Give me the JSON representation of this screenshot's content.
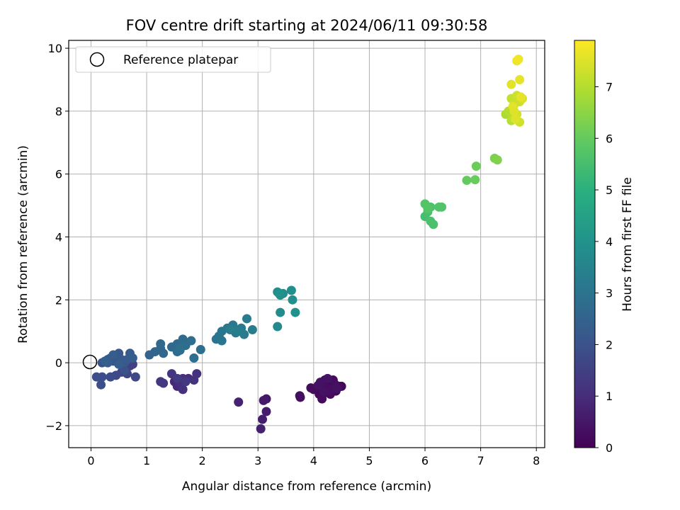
{
  "chart_data": {
    "type": "scatter",
    "title": "FOV centre drift starting at 2024/06/11 09:30:58",
    "xlabel": "Angular distance from reference (arcmin)",
    "ylabel": "Rotation from reference (arcmin)",
    "xlim": [
      -0.4,
      8.15
    ],
    "ylim": [
      -2.7,
      10.25
    ],
    "xticks": [
      0,
      1,
      2,
      3,
      4,
      5,
      6,
      7,
      8
    ],
    "yticks": [
      -2,
      0,
      2,
      4,
      6,
      8,
      10
    ],
    "grid": true,
    "legend": {
      "position": "top-left",
      "entries": [
        "Reference platepar"
      ]
    },
    "reference_point": {
      "x": 0,
      "y": 0
    },
    "colorbar": {
      "label": "Hours from first FF file",
      "colormap": "viridis",
      "range": [
        0,
        7.9
      ],
      "ticks": [
        0,
        1,
        2,
        3,
        4,
        5,
        6,
        7
      ]
    },
    "points": [
      [
        4.05,
        -0.85,
        0.05
      ],
      [
        4.15,
        -0.7,
        0.05
      ],
      [
        4.25,
        -0.95,
        0.08
      ],
      [
        4.3,
        -0.6,
        0.1
      ],
      [
        4.35,
        -0.8,
        0.1
      ],
      [
        4.2,
        -0.55,
        0.12
      ],
      [
        4.4,
        -0.9,
        0.12
      ],
      [
        4.1,
        -1.0,
        0.15
      ],
      [
        4.45,
        -0.75,
        0.15
      ],
      [
        4.5,
        -0.75,
        0.18
      ],
      [
        4.0,
        -0.85,
        0.2
      ],
      [
        4.3,
        -1.0,
        0.2
      ],
      [
        4.15,
        -1.15,
        0.22
      ],
      [
        4.35,
        -0.55,
        0.25
      ],
      [
        3.95,
        -0.8,
        0.25
      ],
      [
        4.22,
        -0.78,
        0.28
      ],
      [
        4.38,
        -0.68,
        0.3
      ],
      [
        4.28,
        -0.88,
        0.3
      ],
      [
        3.75,
        -1.05,
        0.3
      ],
      [
        3.76,
        -1.1,
        0.32
      ],
      [
        4.12,
        -0.62,
        0.35
      ],
      [
        4.18,
        -0.92,
        0.35
      ],
      [
        4.42,
        -0.82,
        0.38
      ],
      [
        4.08,
        -0.72,
        0.38
      ],
      [
        4.25,
        -0.5,
        0.4
      ],
      [
        3.15,
        -1.15,
        0.5
      ],
      [
        3.1,
        -1.2,
        0.55
      ],
      [
        3.15,
        -1.55,
        0.6
      ],
      [
        3.08,
        -1.8,
        0.65
      ],
      [
        3.05,
        -2.1,
        0.7
      ],
      [
        2.65,
        -1.25,
        0.75
      ],
      [
        1.5,
        -0.6,
        0.9
      ],
      [
        1.55,
        -0.75,
        0.95
      ],
      [
        1.65,
        -0.5,
        1.0
      ],
      [
        1.75,
        -0.5,
        1.0
      ],
      [
        1.6,
        -0.65,
        1.05
      ],
      [
        1.65,
        -0.85,
        1.1
      ],
      [
        1.9,
        -0.35,
        1.1
      ],
      [
        1.85,
        -0.55,
        1.15
      ],
      [
        1.45,
        -0.35,
        1.2
      ],
      [
        1.25,
        -0.6,
        1.25
      ],
      [
        1.3,
        -0.65,
        1.3
      ],
      [
        1.7,
        -0.6,
        1.3
      ],
      [
        1.55,
        -0.5,
        1.35
      ],
      [
        0.7,
        -0.1,
        1.5
      ],
      [
        0.75,
        -0.05,
        1.55
      ],
      [
        0.55,
        -0.3,
        1.6
      ],
      [
        0.65,
        -0.35,
        1.65
      ],
      [
        0.8,
        -0.45,
        1.7
      ],
      [
        0.45,
        -0.4,
        1.75
      ],
      [
        0.35,
        -0.45,
        1.8
      ],
      [
        0.2,
        -0.45,
        1.85
      ],
      [
        0.1,
        -0.45,
        1.9
      ],
      [
        0.18,
        -0.7,
        1.9
      ],
      [
        0.6,
        -0.25,
        1.95
      ],
      [
        0.2,
        0.0,
        2.0
      ],
      [
        0.3,
        0.1,
        2.05
      ],
      [
        0.4,
        0.05,
        2.1
      ],
      [
        0.45,
        0.2,
        2.1
      ],
      [
        0.5,
        0.3,
        2.15
      ],
      [
        0.35,
        0.15,
        2.15
      ],
      [
        0.55,
        0.1,
        2.2
      ],
      [
        0.6,
        0.0,
        2.2
      ],
      [
        0.65,
        0.1,
        2.25
      ],
      [
        0.7,
        0.3,
        2.25
      ],
      [
        0.75,
        0.15,
        2.3
      ],
      [
        0.3,
        0.0,
        2.3
      ],
      [
        0.4,
        0.25,
        2.35
      ],
      [
        0.5,
        -0.05,
        2.35
      ],
      [
        0.25,
        0.05,
        2.4
      ],
      [
        1.05,
        0.25,
        2.5
      ],
      [
        1.15,
        0.35,
        2.55
      ],
      [
        1.25,
        0.45,
        2.6
      ],
      [
        1.3,
        0.3,
        2.6
      ],
      [
        1.25,
        0.6,
        2.65
      ],
      [
        1.45,
        0.5,
        2.7
      ],
      [
        1.55,
        0.6,
        2.7
      ],
      [
        1.6,
        0.4,
        2.75
      ],
      [
        1.65,
        0.75,
        2.75
      ],
      [
        1.55,
        0.35,
        2.8
      ],
      [
        1.7,
        0.55,
        2.8
      ],
      [
        1.8,
        0.7,
        2.85
      ],
      [
        1.85,
        0.15,
        2.85
      ],
      [
        1.97,
        0.42,
        2.9
      ],
      [
        1.6,
        0.45,
        2.9
      ],
      [
        2.25,
        0.75,
        3.0
      ],
      [
        2.3,
        0.85,
        3.05
      ],
      [
        2.35,
        0.7,
        3.05
      ],
      [
        2.35,
        1.0,
        3.1
      ],
      [
        2.45,
        1.1,
        3.1
      ],
      [
        2.55,
        1.2,
        3.15
      ],
      [
        2.6,
        0.95,
        3.2
      ],
      [
        2.7,
        1.1,
        3.2
      ],
      [
        2.75,
        0.9,
        3.25
      ],
      [
        2.8,
        1.4,
        3.25
      ],
      [
        2.9,
        1.05,
        3.3
      ],
      [
        2.65,
        1.0,
        3.3
      ],
      [
        2.5,
        1.05,
        3.35
      ],
      [
        3.35,
        1.15,
        3.7
      ],
      [
        3.4,
        1.6,
        3.75
      ],
      [
        3.35,
        2.25,
        3.8
      ],
      [
        3.4,
        2.15,
        3.85
      ],
      [
        3.45,
        2.2,
        3.85
      ],
      [
        3.6,
        2.3,
        3.9
      ],
      [
        3.62,
        2.0,
        3.9
      ],
      [
        3.67,
        1.6,
        3.95
      ],
      [
        3.38,
        2.2,
        3.95
      ],
      [
        6.0,
        4.65,
        5.5
      ],
      [
        6.05,
        4.8,
        5.55
      ],
      [
        6.1,
        4.5,
        5.6
      ],
      [
        6.15,
        4.4,
        5.6
      ],
      [
        6.1,
        4.95,
        5.65
      ],
      [
        6.25,
        4.95,
        5.7
      ],
      [
        6.3,
        4.95,
        5.7
      ],
      [
        6.0,
        5.05,
        5.75
      ],
      [
        6.05,
        4.9,
        5.75
      ],
      [
        6.75,
        5.8,
        6.0
      ],
      [
        6.9,
        5.82,
        6.05
      ],
      [
        6.92,
        6.25,
        6.1
      ],
      [
        7.25,
        6.5,
        6.3
      ],
      [
        7.3,
        6.45,
        6.35
      ],
      [
        7.45,
        7.9,
        6.9
      ],
      [
        7.5,
        8.0,
        7.0
      ],
      [
        7.55,
        7.7,
        7.05
      ],
      [
        7.6,
        7.85,
        7.1
      ],
      [
        7.55,
        8.4,
        7.2
      ],
      [
        7.6,
        8.2,
        7.25
      ],
      [
        7.65,
        8.5,
        7.3
      ],
      [
        7.7,
        8.3,
        7.3
      ],
      [
        7.7,
        7.65,
        7.35
      ],
      [
        7.65,
        7.9,
        7.4
      ],
      [
        7.75,
        8.4,
        7.45
      ],
      [
        7.6,
        8.0,
        7.5
      ],
      [
        7.55,
        8.85,
        7.55
      ],
      [
        7.7,
        9.0,
        7.6
      ],
      [
        7.65,
        9.6,
        7.7
      ],
      [
        7.68,
        9.65,
        7.75
      ],
      [
        7.58,
        8.15,
        7.55
      ],
      [
        7.72,
        8.45,
        7.6
      ],
      [
        7.62,
        7.75,
        7.5
      ]
    ]
  }
}
